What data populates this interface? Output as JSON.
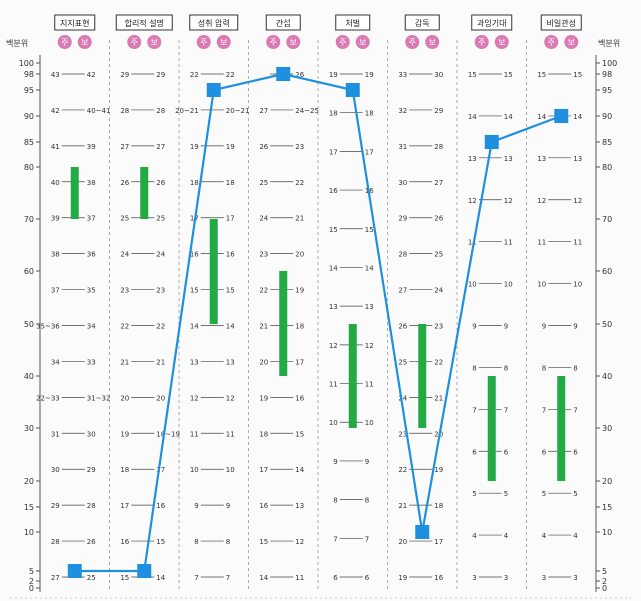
{
  "chart_data": {
    "type": "line",
    "ylabel": "백분위",
    "yticks": [
      0,
      2,
      5,
      10,
      15,
      20,
      30,
      40,
      50,
      60,
      70,
      80,
      85,
      90,
      95,
      98,
      100
    ],
    "badge_left": "주",
    "badge_right": "보",
    "categories": [
      "지지표현",
      "합리적 설명",
      "성취 압력",
      "간섭",
      "처벌",
      "감독",
      "과잉기대",
      "비일관성"
    ],
    "series": [
      {
        "values": [
          5,
          5,
          95,
          98,
          95,
          10,
          85,
          90
        ],
        "color": "#1f8fe0"
      }
    ],
    "ranges": [
      {
        "low": 70,
        "high": 80
      },
      {
        "low": 70,
        "high": 80
      },
      {
        "low": 50,
        "high": 70
      },
      {
        "low": 40,
        "high": 60
      },
      {
        "low": 30,
        "high": 50
      },
      {
        "low": 30,
        "high": 50
      },
      {
        "low": 20,
        "high": 40
      },
      {
        "low": 20,
        "high": 40
      }
    ],
    "range_color": "#22aa44",
    "scales": [
      {
        "ju": [
          "27",
          "28",
          "29",
          "30",
          "31",
          "22~33",
          "34",
          "35~36",
          "37",
          "38",
          "39",
          "40",
          "41",
          "42",
          "43"
        ],
        "bo": [
          "25",
          "26",
          "28",
          "29",
          "30",
          "31~32",
          "33",
          "34",
          "35",
          "36",
          "37",
          "38",
          "39",
          "40~41",
          "42"
        ]
      },
      {
        "ju": [
          "15",
          "16",
          "17",
          "18",
          "19",
          "20",
          "21",
          "22",
          "23",
          "24",
          "25",
          "26",
          "27",
          "28",
          "29"
        ],
        "bo": [
          "14",
          "15",
          "16",
          "17",
          "18~19",
          "20",
          "21",
          "22",
          "23",
          "24",
          "25",
          "26",
          "27",
          "28",
          "29"
        ]
      },
      {
        "ju": [
          "7",
          "8",
          "9",
          "10",
          "11",
          "12",
          "13",
          "14",
          "15",
          "16",
          "17",
          "18",
          "19",
          "20~21",
          "22"
        ],
        "bo": [
          "7",
          "8",
          "9",
          "10",
          "11",
          "12",
          "13",
          "14",
          "15",
          "16",
          "17",
          "18",
          "19",
          "20~21",
          "22"
        ]
      },
      {
        "ju": [
          "14",
          "15",
          "16",
          "17",
          "18",
          "19",
          "20",
          "21",
          "22",
          "23",
          "24",
          "25",
          "26",
          "27"
        ],
        "bo": [
          "11",
          "12",
          "13",
          "14",
          "15",
          "16",
          "17",
          "18",
          "19",
          "20",
          "21",
          "22",
          "23",
          "24~25",
          "26"
        ]
      },
      {
        "ju": [
          "6",
          "7",
          "8",
          "9",
          "10",
          "11",
          "12",
          "13",
          "14",
          "15",
          "16",
          "17",
          "18",
          "19"
        ],
        "bo": [
          "6",
          "7",
          "8",
          "9",
          "10",
          "11",
          "12",
          "13",
          "14",
          "15",
          "16",
          "17",
          "18",
          "19"
        ]
      },
      {
        "ju": [
          "19",
          "20",
          "21",
          "22",
          "23",
          "24",
          "25",
          "26",
          "27",
          "28",
          "29",
          "30",
          "31",
          "32",
          "33"
        ],
        "bo": [
          "16",
          "17",
          "18",
          "19",
          "20",
          "21",
          "22",
          "23",
          "24",
          "25",
          "26",
          "27",
          "28",
          "29",
          "30"
        ]
      },
      {
        "ju": [
          "3",
          "4",
          "5",
          "6",
          "7",
          "8",
          "9",
          "10",
          "11",
          "12",
          "13",
          "14",
          "15"
        ],
        "bo": [
          "3",
          "4",
          "5",
          "6",
          "7",
          "8",
          "9",
          "10",
          "11",
          "12",
          "13",
          "14",
          "15"
        ]
      },
      {
        "ju": [
          "3",
          "4",
          "5",
          "6",
          "7",
          "8",
          "9",
          "10",
          "11",
          "12",
          "13",
          "14",
          "15"
        ],
        "bo": [
          "3",
          "4",
          "5",
          "6",
          "7",
          "8",
          "9",
          "10",
          "11",
          "12",
          "13",
          "14",
          "15"
        ]
      }
    ]
  }
}
